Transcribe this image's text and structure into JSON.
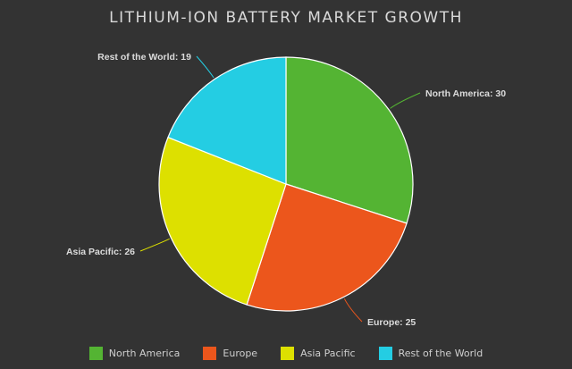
{
  "title": "LITHIUM-ION BATTERY MARKET GROWTH",
  "colors": {
    "background": "#333333",
    "North America": "#54b433",
    "Europe": "#ec561c",
    "Asia Pacific": "#dde000",
    "Rest of the World": "#24cde3"
  },
  "legend": {
    "items": [
      {
        "label": "North America",
        "color": "#54b433"
      },
      {
        "label": "Europe",
        "color": "#ec561c"
      },
      {
        "label": "Asia Pacific",
        "color": "#dde000"
      },
      {
        "label": "Rest of the World",
        "color": "#24cde3"
      }
    ]
  },
  "chart_data": {
    "type": "pie",
    "title": "LITHIUM-ION BATTERY MARKET GROWTH",
    "categories": [
      "North America",
      "Europe",
      "Asia Pacific",
      "Rest of the World"
    ],
    "values": [
      30,
      25,
      26,
      19
    ],
    "colors": [
      "#54b433",
      "#ec561c",
      "#dde000",
      "#24cde3"
    ],
    "data_labels": [
      "North America: 30",
      "Europe: 25",
      "Asia Pacific: 26",
      "Rest of the World: 19"
    ],
    "legend": "bottom",
    "start_angle": "12 o'clock",
    "direction": "clockwise"
  }
}
